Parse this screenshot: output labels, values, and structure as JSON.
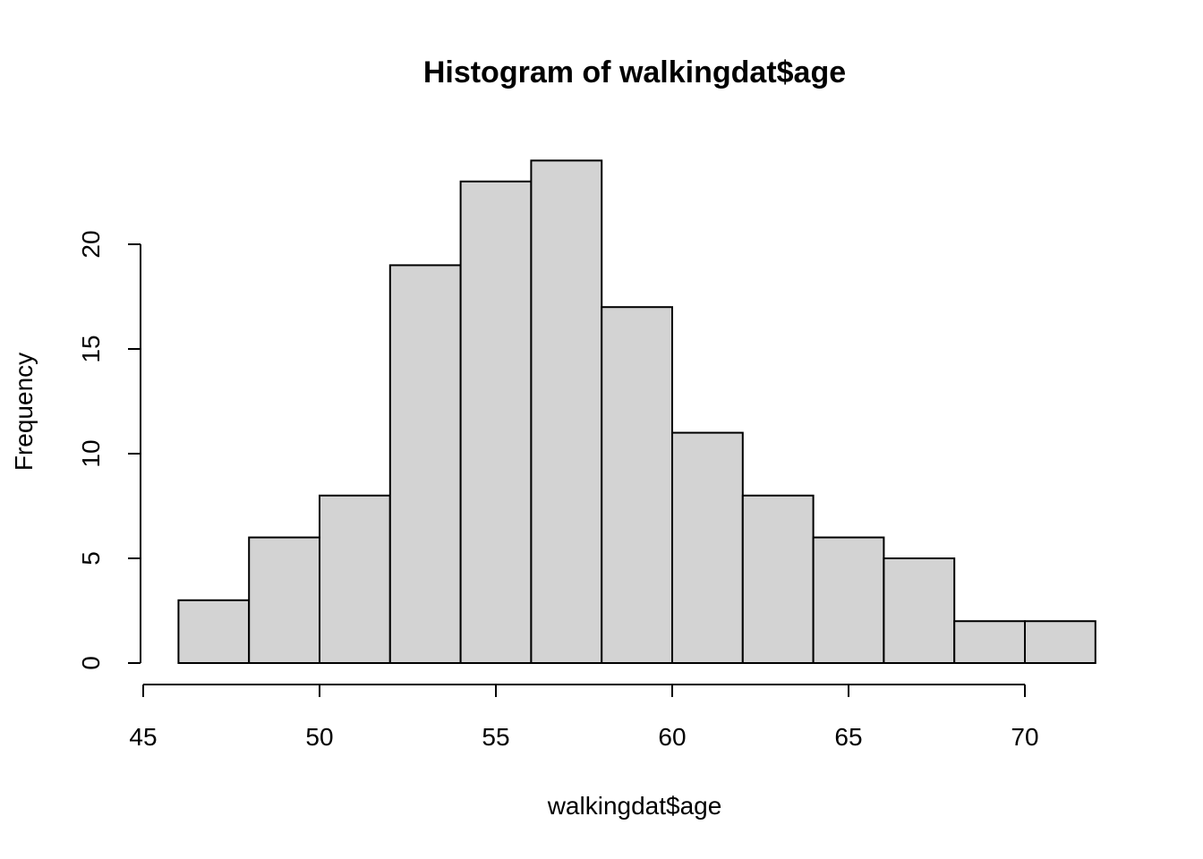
{
  "chart_data": {
    "type": "bar",
    "title": "Histogram of walkingdat$age",
    "xlabel": "walkingdat$age",
    "ylabel": "Frequency",
    "bins": [
      {
        "start": 46,
        "end": 48,
        "count": 3
      },
      {
        "start": 48,
        "end": 50,
        "count": 6
      },
      {
        "start": 50,
        "end": 52,
        "count": 8
      },
      {
        "start": 52,
        "end": 54,
        "count": 19
      },
      {
        "start": 54,
        "end": 56,
        "count": 23
      },
      {
        "start": 56,
        "end": 58,
        "count": 24
      },
      {
        "start": 58,
        "end": 60,
        "count": 17
      },
      {
        "start": 60,
        "end": 62,
        "count": 11
      },
      {
        "start": 62,
        "end": 64,
        "count": 8
      },
      {
        "start": 64,
        "end": 66,
        "count": 6
      },
      {
        "start": 66,
        "end": 68,
        "count": 5
      },
      {
        "start": 68,
        "end": 70,
        "count": 2
      },
      {
        "start": 70,
        "end": 72,
        "count": 2
      }
    ],
    "x_ticks": [
      "45",
      "50",
      "55",
      "60",
      "65",
      "70"
    ],
    "y_ticks": [
      "0",
      "5",
      "10",
      "15",
      "20"
    ],
    "xlim": [
      45,
      72
    ],
    "ylim": [
      0,
      24
    ],
    "fill_color": "#d3d3d3",
    "grid": false,
    "legend": "none"
  }
}
